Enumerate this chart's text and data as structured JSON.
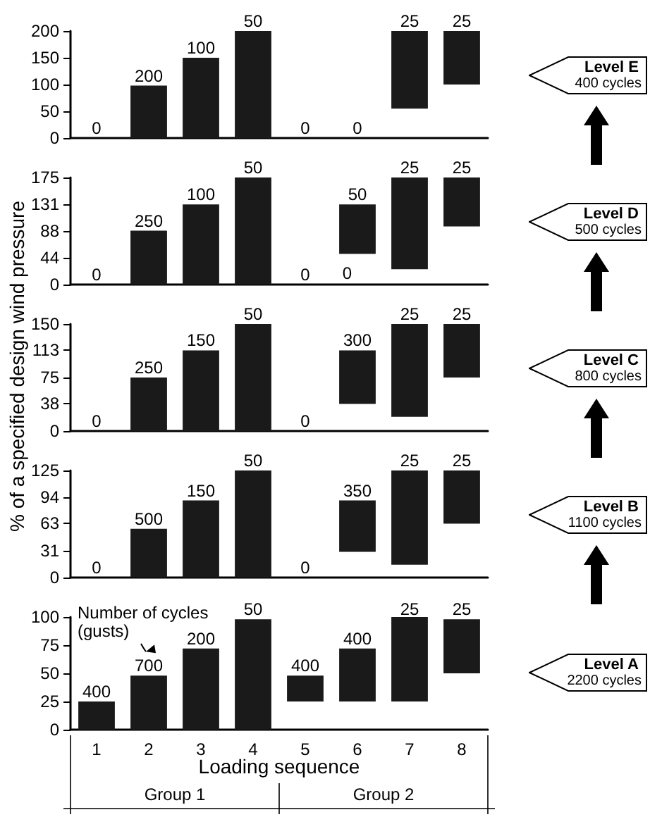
{
  "chart_data": [
    {
      "type": "bar",
      "categories": [
        "1",
        "2",
        "3",
        "4",
        "5",
        "6",
        "7",
        "8"
      ],
      "tick_labels": "y",
      "color": "#1a1a1a",
      "ylim": [
        0,
        200
      ],
      "yticks": [
        0,
        50,
        100,
        150,
        200
      ],
      "base": [
        null,
        0,
        0,
        0,
        null,
        null,
        55,
        100
      ],
      "values": [
        0,
        98,
        150,
        200,
        0,
        0,
        145,
        100
      ],
      "annotations": [
        "Level E",
        "400 cycles",
        {
          "text": "0",
          "x": "1",
          "y": 0
        },
        {
          "text": "200",
          "x": "2",
          "y": 98
        },
        {
          "text": "100",
          "x": "3",
          "y": 150
        },
        {
          "text": "50",
          "x": "4",
          "y": 200
        },
        {
          "text": "0",
          "x": "5",
          "y": 0
        },
        {
          "text": "0",
          "x": "6",
          "y": 0
        },
        {
          "text": "25",
          "x": "7",
          "y": 200
        },
        {
          "text": "25",
          "x": "8",
          "y": 200
        }
      ]
    },
    {
      "type": "bar",
      "categories": [
        "1",
        "2",
        "3",
        "4",
        "5",
        "6",
        "7",
        "8"
      ],
      "tick_labels": "y",
      "color": "#1a1a1a",
      "ylim": [
        0,
        175
      ],
      "yticks": [
        0,
        44,
        88,
        131,
        175
      ],
      "base": [
        null,
        0,
        0,
        0,
        null,
        50,
        25,
        95
      ],
      "values": [
        0,
        88,
        131,
        175,
        0,
        81,
        150,
        80
      ],
      "annotations": [
        "Level D",
        "500 cycles",
        "0",
        {
          "text": "0",
          "x": "1",
          "y": 0
        },
        {
          "text": "250",
          "x": "2",
          "y": 88
        },
        {
          "text": "100",
          "x": "3",
          "y": 131
        },
        {
          "text": "50",
          "x": "4",
          "y": 175
        },
        {
          "text": "0",
          "x": "5",
          "y": 0
        },
        {
          "text": "50",
          "x": "6",
          "y": 131
        },
        {
          "text": "25",
          "x": "7",
          "y": 175
        },
        {
          "text": "25",
          "x": "8",
          "y": 175
        }
      ]
    },
    {
      "type": "bar",
      "categories": [
        "1",
        "2",
        "3",
        "4",
        "5",
        "6",
        "7",
        "8"
      ],
      "tick_labels": "y",
      "color": "#1a1a1a",
      "ylim": [
        0,
        150
      ],
      "yticks": [
        0,
        38,
        75,
        113,
        150
      ],
      "ylabel": "% of a specified design wind pressure",
      "base": [
        null,
        0,
        0,
        0,
        null,
        38,
        20,
        75
      ],
      "values": [
        0,
        75,
        113,
        150,
        0,
        75,
        130,
        75
      ],
      "annotations": [
        "Level C",
        "800 cycles",
        {
          "text": "0",
          "x": "1",
          "y": 0
        },
        {
          "text": "250",
          "x": "2",
          "y": 75
        },
        {
          "text": "150",
          "x": "3",
          "y": 113
        },
        {
          "text": "50",
          "x": "4",
          "y": 150
        },
        {
          "text": "0",
          "x": "5",
          "y": 0
        },
        {
          "text": "300",
          "x": "6",
          "y": 113
        },
        {
          "text": "25",
          "x": "7",
          "y": 150
        },
        {
          "text": "25",
          "x": "8",
          "y": 150
        }
      ]
    },
    {
      "type": "bar",
      "categories": [
        "1",
        "2",
        "3",
        "4",
        "5",
        "6",
        "7",
        "8"
      ],
      "tick_labels": "y",
      "color": "#1a1a1a",
      "ylim": [
        0,
        125
      ],
      "yticks": [
        0,
        31,
        63,
        94,
        125
      ],
      "base": [
        null,
        0,
        0,
        0,
        null,
        30,
        15,
        63
      ],
      "values": [
        0,
        57,
        90,
        125,
        0,
        60,
        110,
        62
      ],
      "annotations": [
        "Level B",
        "1100 cycles",
        {
          "text": "0",
          "x": "1",
          "y": 0
        },
        {
          "text": "500",
          "x": "2",
          "y": 57
        },
        {
          "text": "150",
          "x": "3",
          "y": 90
        },
        {
          "text": "50",
          "x": "4",
          "y": 125
        },
        {
          "text": "0",
          "x": "5",
          "y": 0
        },
        {
          "text": "350",
          "x": "6",
          "y": 90
        },
        {
          "text": "25",
          "x": "7",
          "y": 125
        },
        {
          "text": "25",
          "x": "8",
          "y": 125
        }
      ]
    },
    {
      "type": "bar",
      "categories": [
        "1",
        "2",
        "3",
        "4",
        "5",
        "6",
        "7",
        "8"
      ],
      "color": "#1a1a1a",
      "ylim": [
        0,
        100
      ],
      "yticks": [
        0,
        25,
        50,
        75,
        100
      ],
      "xlabel": "Loading sequence",
      "base": [
        0,
        0,
        0,
        0,
        25,
        25,
        25,
        50
      ],
      "values": [
        25,
        48,
        72,
        98,
        23,
        47,
        75,
        48
      ],
      "annotations": [
        "Level A",
        "2200 cycles",
        "Number of cycles (gusts)",
        "Group 1",
        "Group 2",
        {
          "text": "400",
          "x": "1",
          "y": 25
        },
        {
          "text": "700",
          "x": "2",
          "y": 48
        },
        {
          "text": "200",
          "x": "3",
          "y": 72
        },
        {
          "text": "50",
          "x": "4",
          "y": 98
        },
        {
          "text": "400",
          "x": "5",
          "y": 48
        },
        {
          "text": "400",
          "x": "6",
          "y": 72
        },
        {
          "text": "25",
          "x": "7",
          "y": 98
        },
        {
          "text": "25",
          "x": "8",
          "y": 98
        }
      ]
    }
  ]
}
